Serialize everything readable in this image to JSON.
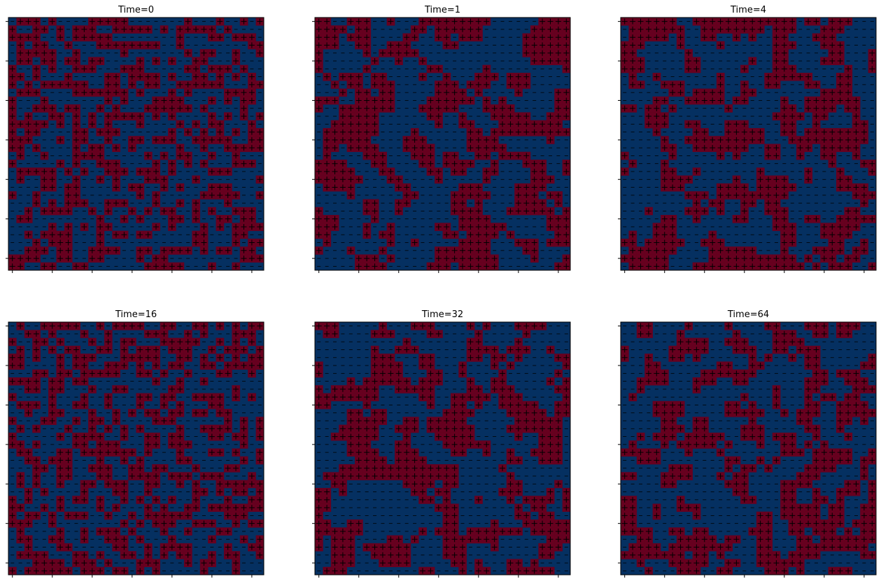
{
  "chart_data": {
    "type": "heatmap",
    "grid_size": 32,
    "symbols": {
      "positive": "+",
      "negative": "-"
    },
    "colors": {
      "positive": "#67001f",
      "negative": "#053061",
      "symbol": "#000000",
      "tick": "#000000"
    },
    "tick_labels": "none",
    "grid": false,
    "legend": "none",
    "panels": [
      {
        "title": "Time=0",
        "seed": 1013,
        "p_positive": 0.48,
        "smooth_passes": 0
      },
      {
        "title": "Time=1",
        "seed": 2027,
        "p_positive": 0.47,
        "smooth_passes": 1
      },
      {
        "title": "Time=4",
        "seed": 3041,
        "p_positive": 0.46,
        "smooth_passes": 1
      },
      {
        "title": "Time=16",
        "seed": 4057,
        "p_positive": 0.48,
        "smooth_passes": 0
      },
      {
        "title": "Time=32",
        "seed": 5081,
        "p_positive": 0.46,
        "smooth_passes": 1
      },
      {
        "title": "Time=64",
        "seed": 6091,
        "p_positive": 0.45,
        "smooth_passes": 1
      }
    ]
  }
}
